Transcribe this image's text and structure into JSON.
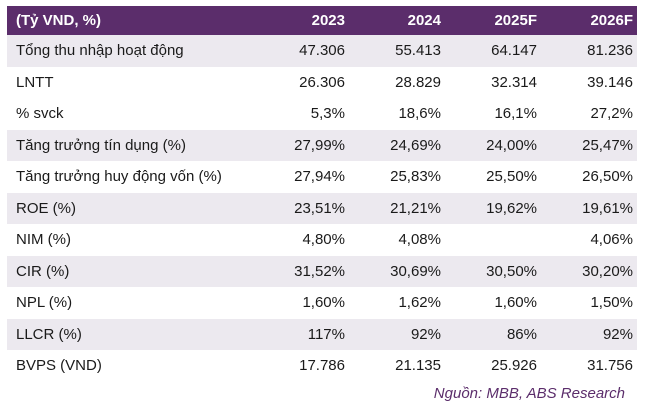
{
  "header": [
    "(Tỷ VND, %)",
    "2023",
    "2024",
    "2025F",
    "2026F"
  ],
  "rows": [
    [
      "Tổng thu nhập hoạt động",
      "47.306",
      "55.413",
      "64.147",
      "81.236"
    ],
    [
      "LNTT",
      "26.306",
      "28.829",
      "32.314",
      "39.146"
    ],
    [
      "% svck",
      "5,3%",
      "18,6%",
      "16,1%",
      "27,2%"
    ],
    [
      "Tăng trưởng tín dụng (%)",
      "27,99%",
      "24,69%",
      "24,00%",
      "25,47%"
    ],
    [
      "Tăng trưởng huy động vốn (%)",
      "27,94%",
      "25,83%",
      "25,50%",
      "26,50%"
    ],
    [
      "ROE (%)",
      "23,51%",
      "21,21%",
      "19,62%",
      "19,61%"
    ],
    [
      "NIM (%)",
      "4,80%",
      "4,08%",
      "",
      "4,06%"
    ],
    [
      "CIR (%)",
      "31,52%",
      "30,69%",
      "30,50%",
      "30,20%"
    ],
    [
      "NPL (%)",
      "1,60%",
      "1,62%",
      "1,60%",
      "1,50%"
    ],
    [
      "LLCR (%)",
      "117%",
      "92%",
      "86%",
      "92%"
    ],
    [
      "BVPS (VND)",
      "17.786",
      "21.135",
      "25.926",
      "31.756"
    ]
  ],
  "source": "Nguồn: MBB, ABS Research",
  "colors": {
    "header_bg": "#5b2d6b",
    "stripe": "#ece9ef"
  }
}
